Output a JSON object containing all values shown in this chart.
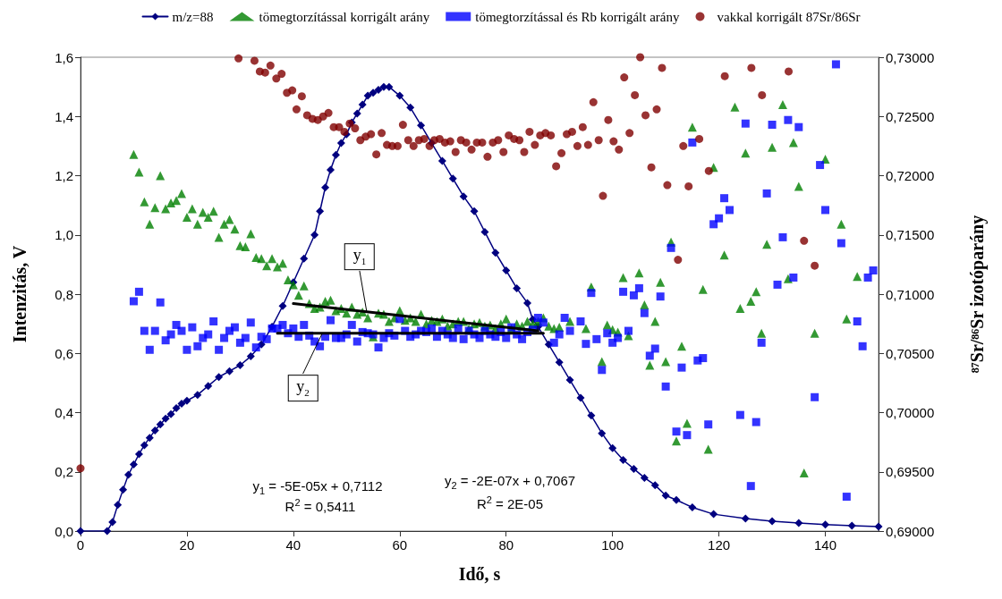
{
  "chart_data": {
    "type": "scatter",
    "xlabel": "Idő, s",
    "ylabel": "Intenzitás, V",
    "y2label": "⁸⁷Sr/⁸⁶Sr izotóparány",
    "xlim": [
      0,
      150
    ],
    "xticks": [
      0,
      20,
      40,
      60,
      80,
      100,
      120,
      140
    ],
    "ylim": [
      0,
      1.6
    ],
    "yticks": [
      {
        "value": 0,
        "label": "0,0"
      },
      {
        "value": 0.2,
        "label": "0,2"
      },
      {
        "value": 0.4,
        "label": "0,4"
      },
      {
        "value": 0.6,
        "label": "0,6"
      },
      {
        "value": 0.8,
        "label": "0,8"
      },
      {
        "value": 1.0,
        "label": "1,0"
      },
      {
        "value": 1.2,
        "label": "1,2"
      },
      {
        "value": 1.4,
        "label": "1,4"
      },
      {
        "value": 1.6,
        "label": "1,6"
      }
    ],
    "y2lim": [
      0.69,
      0.73
    ],
    "y2ticks": [
      {
        "value": 0.69,
        "label": "0,69000"
      },
      {
        "value": 0.695,
        "label": "0,69500"
      },
      {
        "value": 0.7,
        "label": "0,70000"
      },
      {
        "value": 0.705,
        "label": "0,70500"
      },
      {
        "value": 0.71,
        "label": "0,71000"
      },
      {
        "value": 0.715,
        "label": "0,71500"
      },
      {
        "value": 0.72,
        "label": "0,72000"
      },
      {
        "value": 0.725,
        "label": "0,72500"
      },
      {
        "value": 0.73,
        "label": "0,73000"
      }
    ],
    "legend": "top",
    "annotations": [
      {
        "text": "y$_{1}$",
        "x": 53.8,
        "y": 0.74
      },
      {
        "text": "y$_{2}$",
        "x": 45.5,
        "y": 0.67
      },
      "y$_{1}$ = -5E-05x + 0,7112",
      "R$^{2}$ = 0,5411",
      "y$_{2}$ = -2E-07x + 0,7067",
      "R$^{2}$ = 2E-05"
    ],
    "series": [
      {
        "name": "m/z=88",
        "type": "line",
        "marker": "diamond",
        "color": "#000080",
        "x": [
          0,
          5,
          6,
          7,
          8,
          9,
          10,
          11,
          12,
          13,
          14,
          15,
          16,
          17,
          18,
          19,
          20,
          22,
          24,
          26,
          28,
          30,
          32,
          34,
          36,
          38,
          40,
          42,
          44,
          45,
          46,
          47,
          48,
          49,
          50,
          51,
          52,
          53,
          54,
          55,
          56,
          57,
          58,
          60,
          62,
          64,
          66,
          68,
          70,
          72,
          74,
          76,
          78,
          80,
          82,
          84,
          85,
          86,
          88,
          90,
          92,
          94,
          96,
          98,
          100,
          102,
          104,
          106,
          108,
          110,
          112,
          115,
          119,
          125,
          130,
          135,
          140,
          145,
          150
        ],
        "values": [
          0,
          0,
          0.03,
          0.088,
          0.14,
          0.19,
          0.225,
          0.26,
          0.29,
          0.315,
          0.34,
          0.36,
          0.38,
          0.395,
          0.415,
          0.43,
          0.44,
          0.46,
          0.49,
          0.52,
          0.54,
          0.56,
          0.59,
          0.63,
          0.69,
          0.76,
          0.84,
          0.92,
          1.0,
          1.08,
          1.16,
          1.22,
          1.27,
          1.31,
          1.34,
          1.38,
          1.41,
          1.44,
          1.47,
          1.48,
          1.49,
          1.5,
          1.5,
          1.47,
          1.43,
          1.37,
          1.31,
          1.25,
          1.19,
          1.13,
          1.08,
          1.01,
          0.94,
          0.88,
          0.82,
          0.77,
          0.715,
          0.69,
          0.63,
          0.57,
          0.51,
          0.45,
          0.39,
          0.33,
          0.28,
          0.24,
          0.21,
          0.18,
          0.155,
          0.12,
          0.105,
          0.08,
          0.057,
          0.042,
          0.033,
          0.027,
          0.022,
          0.018,
          0.015
        ]
      },
      {
        "name": "tömegtorzítással korrigált arány",
        "type": "scatter",
        "marker": "triangle",
        "color": "#008000",
        "axis": "y2",
        "x": [
          10,
          11,
          12,
          13,
          14,
          15,
          16,
          17,
          18,
          19,
          20,
          21,
          22,
          23,
          24,
          25,
          26,
          27,
          28,
          29,
          30,
          31,
          32,
          33,
          34,
          35,
          36,
          37,
          38,
          39,
          40,
          41,
          42,
          43,
          44,
          45,
          46,
          47,
          48,
          49,
          50,
          51,
          52,
          53,
          54,
          55,
          56,
          57,
          58,
          59,
          60,
          61,
          62,
          63,
          64,
          65,
          66,
          67,
          68,
          69,
          70,
          71,
          72,
          73,
          74,
          75,
          76,
          77,
          78,
          79,
          80,
          81,
          82,
          83,
          84,
          85,
          86,
          87,
          88,
          89,
          90,
          92,
          95,
          96,
          98,
          99,
          100,
          101,
          102,
          103,
          105,
          106,
          107,
          108,
          109,
          110,
          111,
          112,
          113,
          114,
          115,
          117,
          118,
          119,
          121,
          123,
          124,
          125,
          126,
          127,
          128,
          129,
          130,
          132,
          133,
          134,
          135,
          136,
          138,
          140,
          143,
          144,
          146
        ],
        "values": [
          0.7218,
          0.7203,
          0.7178,
          0.7159,
          0.7173,
          0.72,
          0.7172,
          0.7177,
          0.7179,
          0.7185,
          0.7165,
          0.7172,
          0.7159,
          0.7169,
          0.7165,
          0.717,
          0.7148,
          0.7159,
          0.7163,
          0.7155,
          0.7141,
          0.714,
          0.7151,
          0.7131,
          0.713,
          0.7124,
          0.713,
          0.7123,
          0.7126,
          0.7112,
          0.7108,
          0.7099,
          0.7107,
          0.7092,
          0.7088,
          0.7089,
          0.7094,
          0.7095,
          0.7086,
          0.7088,
          0.7084,
          0.7089,
          0.7083,
          0.7085,
          0.708,
          0.7064,
          0.7084,
          0.7083,
          0.7077,
          0.708,
          0.7086,
          0.7078,
          0.708,
          0.7077,
          0.7083,
          0.7075,
          0.7078,
          0.7077,
          0.7079,
          0.7073,
          0.7075,
          0.7077,
          0.7077,
          0.7071,
          0.7075,
          0.7076,
          0.7073,
          0.7074,
          0.7071,
          0.7075,
          0.7079,
          0.7071,
          0.7075,
          0.7073,
          0.7077,
          0.7075,
          0.7077,
          0.708,
          0.7073,
          0.7071,
          0.7072,
          0.7077,
          0.7071,
          0.7106,
          0.7043,
          0.7074,
          0.707,
          0.7068,
          0.7114,
          0.7065,
          0.7118,
          0.7091,
          0.704,
          0.7077,
          0.711,
          0.7043,
          0.7144,
          0.6976,
          0.7056,
          0.6991,
          0.7241,
          0.7104,
          0.6969,
          0.7207,
          0.7133,
          0.7258,
          0.7088,
          0.7219,
          0.7094,
          0.7102,
          0.7067,
          0.7142,
          0.7224,
          0.726,
          0.7113,
          0.7228,
          0.7191,
          0.6949,
          0.7067,
          0.7214,
          0.7159,
          0.7079,
          0.7115
        ]
      },
      {
        "name": "tömegtorzítással és Rb korrigált arány",
        "type": "scatter",
        "marker": "square",
        "color": "#0000ff",
        "axis": "y2",
        "x": [
          10,
          11,
          12,
          13,
          14,
          15,
          16,
          17,
          18,
          19,
          20,
          21,
          22,
          23,
          24,
          25,
          26,
          27,
          28,
          29,
          30,
          31,
          32,
          33,
          34,
          35,
          36,
          37,
          38,
          39,
          40,
          41,
          42,
          43,
          44,
          45,
          46,
          47,
          48,
          49,
          50,
          51,
          52,
          53,
          54,
          55,
          56,
          57,
          58,
          59,
          60,
          61,
          62,
          63,
          64,
          65,
          66,
          67,
          68,
          69,
          70,
          71,
          72,
          73,
          74,
          75,
          76,
          77,
          78,
          79,
          80,
          81,
          82,
          83,
          84,
          85,
          86,
          87,
          89,
          90,
          91,
          92,
          94,
          95,
          96,
          97,
          98,
          99,
          100,
          101,
          102,
          103,
          104,
          105,
          106,
          107,
          108,
          109,
          110,
          111,
          112,
          113,
          114,
          115,
          116,
          117,
          118,
          119,
          120,
          121,
          122,
          124,
          125,
          126,
          127,
          128,
          129,
          130,
          131,
          132,
          133,
          134,
          135,
          138,
          139,
          140,
          142,
          143,
          144,
          146,
          147,
          148,
          149
        ],
        "values": [
          0.7094,
          0.7102,
          0.7069,
          0.7053,
          0.7069,
          0.7093,
          0.7061,
          0.7066,
          0.7074,
          0.7069,
          0.7053,
          0.7072,
          0.7056,
          0.7063,
          0.7066,
          0.7077,
          0.7053,
          0.7063,
          0.7069,
          0.7072,
          0.7059,
          0.7063,
          0.7076,
          0.7055,
          0.7064,
          0.7062,
          0.7071,
          0.7071,
          0.7074,
          0.7067,
          0.7071,
          0.7064,
          0.7074,
          0.7065,
          0.706,
          0.7056,
          0.7064,
          0.7078,
          0.7063,
          0.7063,
          0.7066,
          0.7074,
          0.706,
          0.7068,
          0.7067,
          0.7066,
          0.7055,
          0.7063,
          0.7067,
          0.7065,
          0.7079,
          0.7069,
          0.7064,
          0.7066,
          0.7069,
          0.7068,
          0.7071,
          0.7064,
          0.7069,
          0.7066,
          0.7063,
          0.7071,
          0.7062,
          0.7069,
          0.7066,
          0.7063,
          0.7069,
          0.7066,
          0.7064,
          0.7068,
          0.7063,
          0.7072,
          0.7066,
          0.7062,
          0.7068,
          0.707,
          0.708,
          0.7076,
          0.7059,
          0.7066,
          0.708,
          0.7069,
          0.7077,
          0.7058,
          0.7101,
          0.7062,
          0.7036,
          0.7067,
          0.7059,
          0.7063,
          0.7102,
          0.7069,
          0.7099,
          0.7105,
          0.7084,
          0.7048,
          0.7054,
          0.7098,
          0.7022,
          0.7139,
          0.6984,
          0.7038,
          0.6981,
          0.7228,
          0.7044,
          0.7046,
          0.699,
          0.7159,
          0.7164,
          0.7181,
          0.7171,
          0.6998,
          0.7244,
          0.6938,
          0.6992,
          0.7059,
          0.7185,
          0.7243,
          0.7108,
          0.7148,
          0.7247,
          0.7114,
          0.7241,
          0.7013,
          0.7209,
          0.7171,
          0.7294,
          0.7143,
          0.6929,
          0.7077,
          0.7056,
          0.7114,
          0.712
        ]
      },
      {
        "name": "vakkal korrigált 87Sr/86Sr",
        "type": "scatter",
        "marker": "circle",
        "color": "#800000",
        "axis": "y2",
        "x": [
          0,
          29.7,
          32.7,
          33.7,
          34.7,
          35.7,
          36.8,
          37.8,
          38.8,
          39.8,
          40.6,
          41.6,
          42.6,
          43.6,
          44.6,
          45.6,
          46.6,
          47.6,
          48.6,
          49.6,
          50.6,
          51.6,
          52.6,
          53.6,
          54.6,
          55.6,
          56.6,
          57.6,
          58.6,
          59.6,
          60.6,
          61.6,
          62.6,
          63.6,
          64.6,
          65.6,
          66.5,
          67.5,
          68.5,
          69.5,
          70.5,
          71.5,
          72.5,
          73.5,
          74.5,
          75.5,
          76.5,
          77.5,
          78.5,
          79.5,
          80.5,
          81.5,
          82.5,
          83.4,
          84.4,
          85.4,
          86.4,
          87.4,
          88.4,
          89.4,
          90.4,
          91.4,
          92.4,
          93.4,
          94.4,
          95.4,
          96.4,
          97.4,
          98.2,
          99.2,
          100.2,
          101.2,
          102.2,
          103.2,
          104.2,
          105.2,
          106.2,
          107.3,
          108.3,
          109.3,
          110.3,
          112.3,
          113.3,
          114.3,
          116.3,
          118.1,
          121.1,
          126.1,
          128.1,
          133.1,
          136,
          138
        ],
        "values": [
          0.6953,
          0.7299,
          0.7297,
          0.7288,
          0.7287,
          0.7293,
          0.7282,
          0.7286,
          0.727,
          0.7272,
          0.7256,
          0.7267,
          0.7251,
          0.7248,
          0.7247,
          0.725,
          0.7253,
          0.7241,
          0.7241,
          0.7237,
          0.7244,
          0.724,
          0.723,
          0.7233,
          0.7235,
          0.7218,
          0.7236,
          0.7226,
          0.7225,
          0.7225,
          0.7243,
          0.723,
          0.7225,
          0.723,
          0.7231,
          0.7225,
          0.723,
          0.7231,
          0.7228,
          0.7229,
          0.722,
          0.723,
          0.7228,
          0.7222,
          0.7228,
          0.7228,
          0.7216,
          0.7228,
          0.723,
          0.722,
          0.7234,
          0.7231,
          0.723,
          0.722,
          0.7237,
          0.7226,
          0.7234,
          0.7236,
          0.7234,
          0.7208,
          0.7219,
          0.7235,
          0.7237,
          0.7225,
          0.7241,
          0.7226,
          0.7262,
          0.723,
          0.7183,
          0.7247,
          0.7229,
          0.7222,
          0.7283,
          0.7236,
          0.7268,
          0.73,
          0.7251,
          0.7207,
          0.7256,
          0.7291,
          0.7192,
          0.7129,
          0.7225,
          0.7191,
          0.7231,
          0.7204,
          0.7284,
          0.7291,
          0.7268,
          0.7288,
          0.7145,
          0.7124
        ]
      },
      {
        "type": "line",
        "marker": "none",
        "color": "#000000",
        "axis": "y2",
        "x": [
          40,
          86
        ],
        "values": [
          0.7092,
          0.7069
        ]
      },
      {
        "type": "line",
        "marker": "none",
        "color": "#000000",
        "axis": "y2",
        "x": [
          37,
          87
        ],
        "values": [
          0.7067,
          0.7067
        ]
      }
    ]
  }
}
